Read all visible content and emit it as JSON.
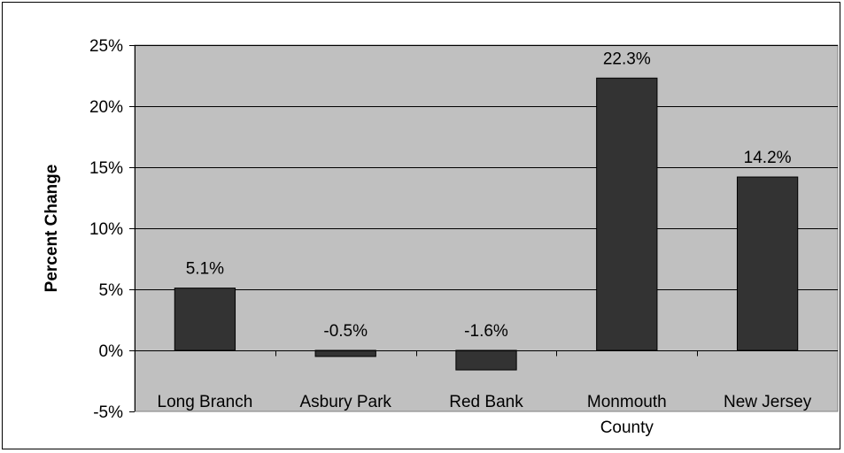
{
  "chart_data": {
    "type": "bar",
    "title": "",
    "ylabel": "Percent Change",
    "xlabel": "",
    "categories": [
      "Long Branch",
      "Asbury Park",
      "Red Bank",
      "Monmouth County",
      "New Jersey"
    ],
    "category_label_lines": [
      [
        "Long Branch"
      ],
      [
        "Asbury Park"
      ],
      [
        "Red Bank"
      ],
      [
        "Monmouth",
        "County"
      ],
      [
        "New Jersey"
      ]
    ],
    "values": [
      5.1,
      -0.5,
      -1.6,
      22.3,
      14.2
    ],
    "data_labels": [
      "5.1%",
      "-0.5%",
      "-1.6%",
      "22.3%",
      "14.2%"
    ],
    "ylim": [
      -5,
      25
    ],
    "yticks": [
      -5,
      0,
      5,
      10,
      15,
      20,
      25
    ],
    "ytick_labels": [
      "-5%",
      "0%",
      "5%",
      "10%",
      "15%",
      "20%",
      "25%"
    ],
    "grid": true,
    "legend": "none",
    "colors": {
      "bar": "#333333",
      "plot_background": "#c0c0c0",
      "gridline": "#000000"
    }
  }
}
